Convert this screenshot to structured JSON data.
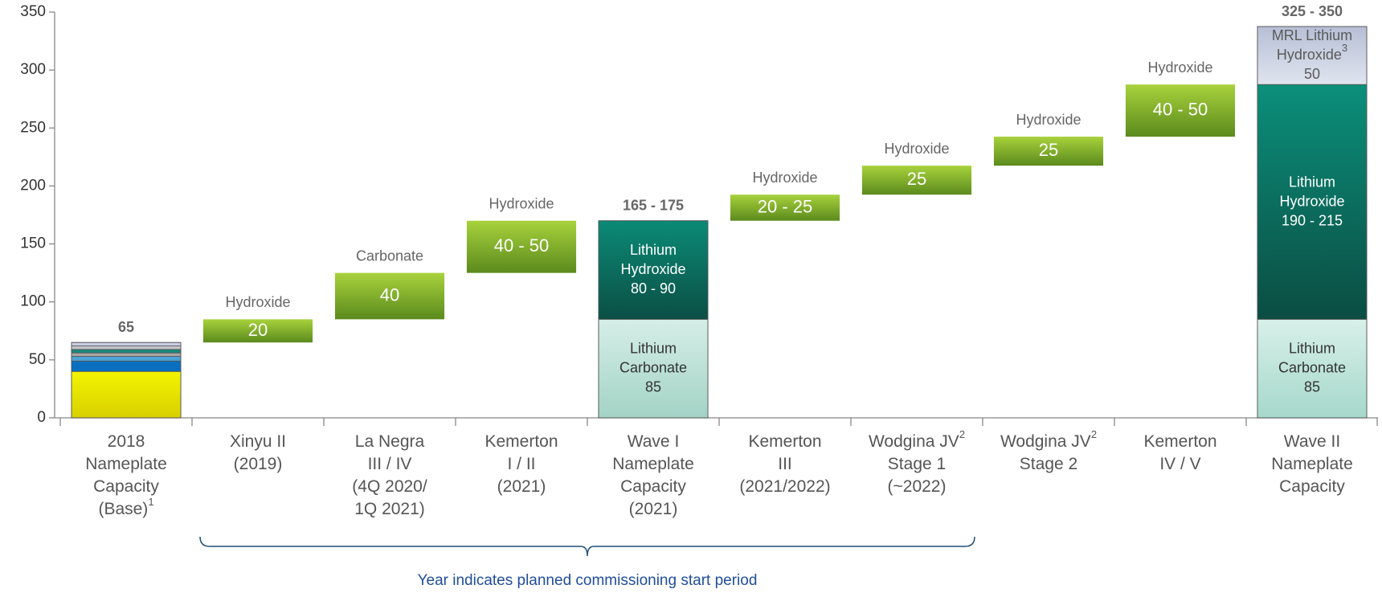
{
  "chart_data": {
    "type": "waterfall",
    "ylim": [
      0,
      350
    ],
    "yticks": [
      0,
      50,
      100,
      150,
      200,
      250,
      300,
      350
    ],
    "categories": [
      {
        "lines": [
          "2018",
          "Nameplate",
          "Capacity",
          {
            "text": "(Base)",
            "note": "1"
          }
        ]
      },
      {
        "lines": [
          "Xinyu II",
          "(2019)"
        ]
      },
      {
        "lines": [
          "La Negra",
          "III / IV",
          "(4Q 2020/",
          "1Q 2021)"
        ]
      },
      {
        "lines": [
          "Kemerton",
          "I / II",
          "(2021)"
        ]
      },
      {
        "lines": [
          "Wave I",
          "Nameplate",
          "Capacity",
          "(2021)"
        ]
      },
      {
        "lines": [
          "Kemerton",
          "III",
          "(2021/2022)"
        ]
      },
      {
        "lines": [
          {
            "text": "Wodgina JV",
            "note": "2"
          },
          "Stage 1",
          "(~2022)"
        ]
      },
      {
        "lines": [
          {
            "text": "Wodgina JV",
            "note": "2"
          },
          "Stage 2"
        ]
      },
      {
        "lines": [
          "Kemerton",
          "IV / V"
        ]
      },
      {
        "lines": [
          "Wave II",
          "Nameplate",
          "Capacity"
        ]
      }
    ],
    "bars": [
      {
        "total": true,
        "total_label": "65",
        "segments": [
          {
            "value": 40,
            "color": [
              "#f4f400",
              "#d8d000"
            ]
          },
          {
            "value": 9,
            "color": "#0a6fbf"
          },
          {
            "value": 4,
            "color": "#4da3d6"
          },
          {
            "value": 3,
            "color": "#a6a6a6"
          },
          {
            "value": 3,
            "color": "#158a7d"
          },
          {
            "value": 3,
            "color": "#c4c4c4"
          },
          {
            "value": 3,
            "color": "#c9cde4"
          }
        ]
      },
      {
        "note": "Hydroxide",
        "segments": [
          {
            "value": 20,
            "color": [
              "#a8d23c",
              "#5b8a1d"
            ],
            "text_color": "#ffffff"
          }
        ]
      },
      {
        "note": "Carbonate",
        "segments": [
          {
            "value": 40,
            "color": [
              "#a8d23c",
              "#5b8a1d"
            ],
            "text_color": "#ffffff"
          }
        ]
      },
      {
        "note": "Hydroxide",
        "segments": [
          {
            "value": 45,
            "value_label": "40 - 50",
            "color": [
              "#a8d23c",
              "#5b8a1d"
            ],
            "text_color": "#ffffff"
          }
        ]
      },
      {
        "total": true,
        "total_label": "165 - 175",
        "segments": [
          {
            "value": 85,
            "name": [
              "Lithium",
              "Carbonate"
            ],
            "color": [
              "#d6eee7",
              "#a3d3c6"
            ],
            "text_color": "#333333"
          },
          {
            "value": 85,
            "value_label": "80 - 90",
            "name": [
              "Lithium",
              "Hydroxide"
            ],
            "color": [
              "#0b8a77",
              "#0b4f44"
            ],
            "text_color": "#ffffff"
          }
        ]
      },
      {
        "note": "Hydroxide",
        "segments": [
          {
            "value": 22.5,
            "value_label": "20 - 25",
            "color": [
              "#a8d23c",
              "#5b8a1d"
            ],
            "text_color": "#ffffff"
          }
        ]
      },
      {
        "note": "Hydroxide",
        "segments": [
          {
            "value": 25,
            "color": [
              "#a8d23c",
              "#5b8a1d"
            ],
            "text_color": "#ffffff"
          }
        ]
      },
      {
        "note": "Hydroxide",
        "segments": [
          {
            "value": 25,
            "color": [
              "#a8d23c",
              "#5b8a1d"
            ],
            "text_color": "#ffffff"
          }
        ]
      },
      {
        "note": "Hydroxide",
        "segments": [
          {
            "value": 45,
            "value_label": "40 - 50",
            "color": [
              "#a8d23c",
              "#5b8a1d"
            ],
            "text_color": "#ffffff"
          }
        ]
      },
      {
        "total": true,
        "total_label": "325 - 350",
        "segments": [
          {
            "value": 85,
            "name": [
              "Lithium",
              "Carbonate"
            ],
            "color": [
              "#d8f0e9",
              "#a6d8cb"
            ],
            "text_color": "#333333"
          },
          {
            "value": 202.5,
            "value_label": "190 - 215",
            "name": [
              "Lithium",
              "Hydroxide"
            ],
            "color": [
              "#0b8f7b",
              "#0b4d42"
            ],
            "text_color": "#ffffff"
          },
          {
            "value": 50,
            "name": [
              "MRL Lithium",
              {
                "text": "Hydroxide",
                "note": "3"
              }
            ],
            "color": [
              "#b7bfd6",
              "#dfe4ee"
            ],
            "text_color": "#5a5a5a"
          }
        ]
      }
    ],
    "annotation": "Year indicates planned commissioning start period"
  }
}
